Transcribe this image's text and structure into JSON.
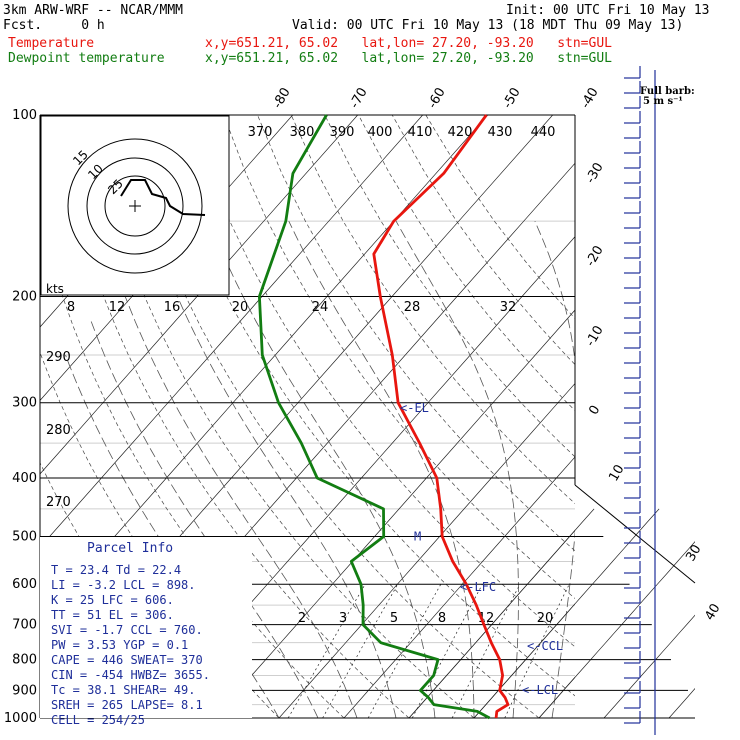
{
  "header": {
    "model": "3km ARW-WRF -- NCAR/MMM",
    "fcst": "Fcst.     0 h",
    "init": "Init: 00 UTC Fri 10 May 13",
    "valid": "Valid: 00 UTC Fri 10 May 13 (18 MDT Thu 09 May 13)",
    "temperature_legend": "Temperature",
    "dewpoint_legend": "Dewpoint temperature",
    "location": "x,y=651.21, 65.02   lat,lon= 27.20, -93.20   stn=GUL",
    "full_barb_label": "Full barb:",
    "full_barb_value": "5 m s⁻¹",
    "colors": {
      "temperature": "#e8160f",
      "dewpoint": "#127d12",
      "annotation": "#1f2f9a"
    }
  },
  "chart_data": {
    "type": "line",
    "title": "",
    "pressure_levels_hPa": [
      100,
      200,
      300,
      400,
      500,
      600,
      700,
      800,
      900,
      1000
    ],
    "pressure_labels": [
      "100",
      "200",
      "300",
      "400",
      "500",
      "600",
      "700",
      "800",
      "900",
      "1000"
    ],
    "isotherm_labels_top": [
      "-80",
      "-70",
      "-60",
      "-50",
      "-40"
    ],
    "isotherm_labels_right": [
      "-30",
      "-20",
      "-10",
      "0",
      "10",
      "30",
      "40"
    ],
    "mixing_ratio_labels": [
      "2",
      "3",
      "5",
      "8",
      "12",
      "20"
    ],
    "dry_adiabat_labels_left": [
      "290",
      "280",
      "270"
    ],
    "theta_e_labels": [
      "370",
      "380",
      "390",
      "400",
      "410",
      "420",
      "430",
      "440"
    ],
    "hodograph": {
      "units_label": "kts",
      "ring_labels": [
        "15",
        "10",
        "25"
      ],
      "x_ticks": [
        "8",
        "12",
        "16",
        "20",
        "24",
        "28",
        "32"
      ]
    },
    "series": [
      {
        "name": "Temperature",
        "color": "#e8160f",
        "points": [
          {
            "p": 1000,
            "t": 23.4
          },
          {
            "p": 975,
            "t": 22.6
          },
          {
            "p": 950,
            "t": 23.4
          },
          {
            "p": 925,
            "t": 22.0
          },
          {
            "p": 900,
            "t": 20.2
          },
          {
            "p": 850,
            "t": 18.6
          },
          {
            "p": 800,
            "t": 16.0
          },
          {
            "p": 750,
            "t": 12.4
          },
          {
            "p": 700,
            "t": 8.8
          },
          {
            "p": 650,
            "t": 5.0
          },
          {
            "p": 600,
            "t": 0.6
          },
          {
            "p": 550,
            "t": -4.6
          },
          {
            "p": 500,
            "t": -9.6
          },
          {
            "p": 450,
            "t": -13.6
          },
          {
            "p": 400,
            "t": -18.4
          },
          {
            "p": 350,
            "t": -25.8
          },
          {
            "p": 300,
            "t": -34.6
          },
          {
            "p": 250,
            "t": -42.0
          },
          {
            "p": 200,
            "t": -51.8
          },
          {
            "p": 170,
            "t": -58.6
          },
          {
            "p": 150,
            "t": -60.0
          },
          {
            "p": 125,
            "t": -58.8
          },
          {
            "p": 100,
            "t": -60.2
          }
        ]
      },
      {
        "name": "Dewpoint temperature",
        "color": "#127d12",
        "points": [
          {
            "p": 1000,
            "t": 22.4
          },
          {
            "p": 975,
            "t": 19.6
          },
          {
            "p": 950,
            "t": 12.0
          },
          {
            "p": 925,
            "t": 10.2
          },
          {
            "p": 900,
            "t": 8.0
          },
          {
            "p": 850,
            "t": 8.0
          },
          {
            "p": 800,
            "t": 6.5
          },
          {
            "p": 750,
            "t": -4.6
          },
          {
            "p": 700,
            "t": -9.8
          },
          {
            "p": 650,
            "t": -12.4
          },
          {
            "p": 600,
            "t": -15.6
          },
          {
            "p": 550,
            "t": -20.2
          },
          {
            "p": 500,
            "t": -18.6
          },
          {
            "p": 450,
            "t": -22.4
          },
          {
            "p": 400,
            "t": -36.8
          },
          {
            "p": 350,
            "t": -44.0
          },
          {
            "p": 300,
            "t": -53.0
          },
          {
            "p": 250,
            "t": -62.0
          },
          {
            "p": 200,
            "t": -70.4
          },
          {
            "p": 150,
            "t": -76.6
          },
          {
            "p": 125,
            "t": -82.0
          },
          {
            "p": 100,
            "t": -84.8
          }
        ]
      }
    ],
    "levels": [
      {
        "label": "<-EL",
        "p": 306
      },
      {
        "label": "M",
        "p": 500
      },
      {
        "label": "<-LFC",
        "p": 606
      },
      {
        "label": "<-CCL",
        "p": 760
      },
      {
        "label": "<-LCL",
        "p": 898
      }
    ]
  },
  "parcel_info": {
    "title": "Parcel Info",
    "rows": [
      "T   =   23.4  Td =  22.4",
      "LI  =   -3.2  LCL =  898.",
      "K   =     25  LFC =  606.",
      "TT  =     51  EL  =  306.",
      "SVI =   -1.7  CCL =  760.",
      "PW  =   3.53  YGP =   0.1",
      "CAPE =   446  SWEAT=  370",
      "CIN  =  -454  HWBZ= 3655.",
      "Tc  =   38.1  SHEAR=  49.",
      "SREH =   265  LAPSE=  8.1",
      "CELL = 254/25"
    ]
  }
}
